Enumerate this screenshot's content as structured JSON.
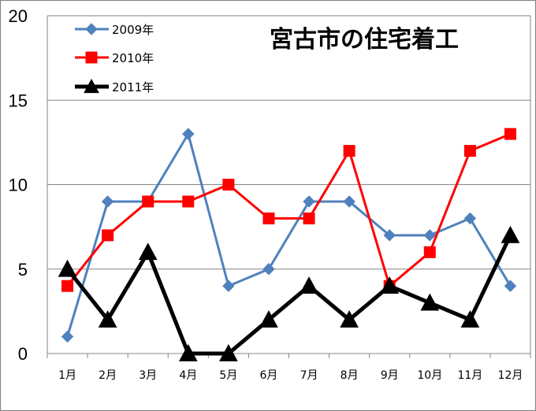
{
  "chart_data": {
    "type": "line",
    "title": "宮古市の住宅着工",
    "xlabel": "",
    "ylabel": "",
    "ylim": [
      0,
      20
    ],
    "yticks": [
      0,
      5,
      10,
      15,
      20
    ],
    "grid": true,
    "legend": "top-left",
    "categories": [
      "1月",
      "2月",
      "3月",
      "4月",
      "5月",
      "6月",
      "7月",
      "8月",
      "9月",
      "10月",
      "11月",
      "12月"
    ],
    "series": [
      {
        "name": "2009年",
        "color": "#4f81bd",
        "marker": "diamond",
        "values": [
          1,
          9,
          9,
          13,
          4,
          5,
          9,
          9,
          7,
          7,
          8,
          4
        ]
      },
      {
        "name": "2010年",
        "color": "#ff0000",
        "marker": "square",
        "values": [
          4,
          7,
          9,
          9,
          10,
          8,
          8,
          12,
          4,
          6,
          12,
          13
        ]
      },
      {
        "name": "2011年",
        "color": "#000000",
        "marker": "triangle",
        "values": [
          5,
          2,
          6,
          0,
          0,
          2,
          4,
          2,
          4,
          3,
          2,
          7
        ]
      }
    ]
  }
}
